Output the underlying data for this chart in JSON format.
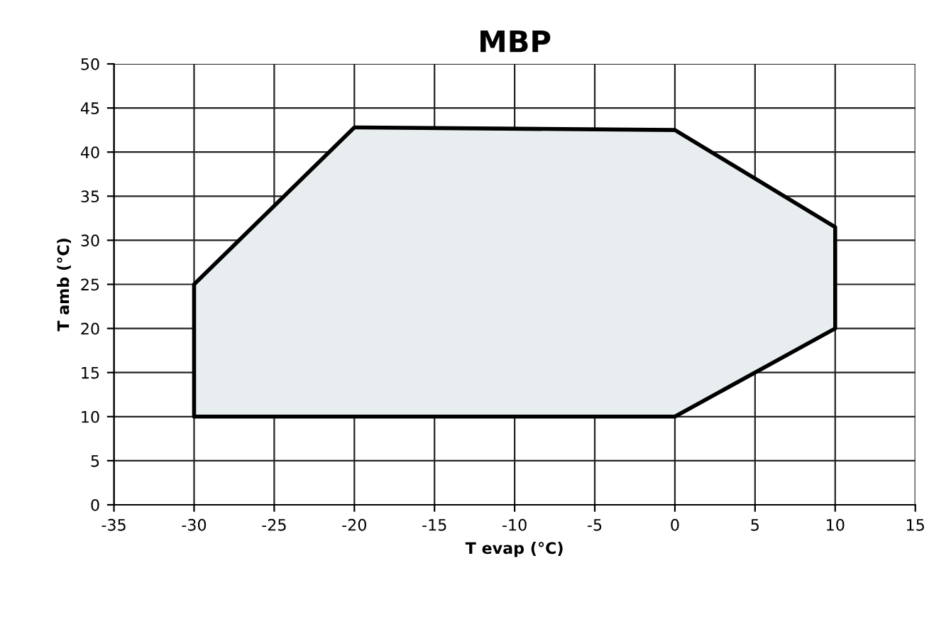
{
  "chart_data": {
    "type": "area",
    "title": "MBP",
    "xlabel": "T evap (°C)",
    "ylabel": "T amb (°C)",
    "series": [
      {
        "color": "#000000",
        "x": [
          -30,
          -30,
          -20,
          0,
          10,
          10,
          0,
          -30
        ],
        "values": [
          10,
          25,
          42.8,
          42.5,
          31.5,
          20,
          10,
          10
        ]
      }
    ],
    "xlim": [
      -35,
      15
    ],
    "xticks": [
      -35,
      -30,
      -25,
      -20,
      -15,
      -10,
      -5,
      0,
      5,
      10,
      15
    ],
    "ylim": [
      0,
      50
    ],
    "yticks": [
      0,
      5,
      10,
      15,
      20,
      25,
      30,
      35,
      40,
      45,
      50
    ],
    "grid": true,
    "legend": false
  }
}
